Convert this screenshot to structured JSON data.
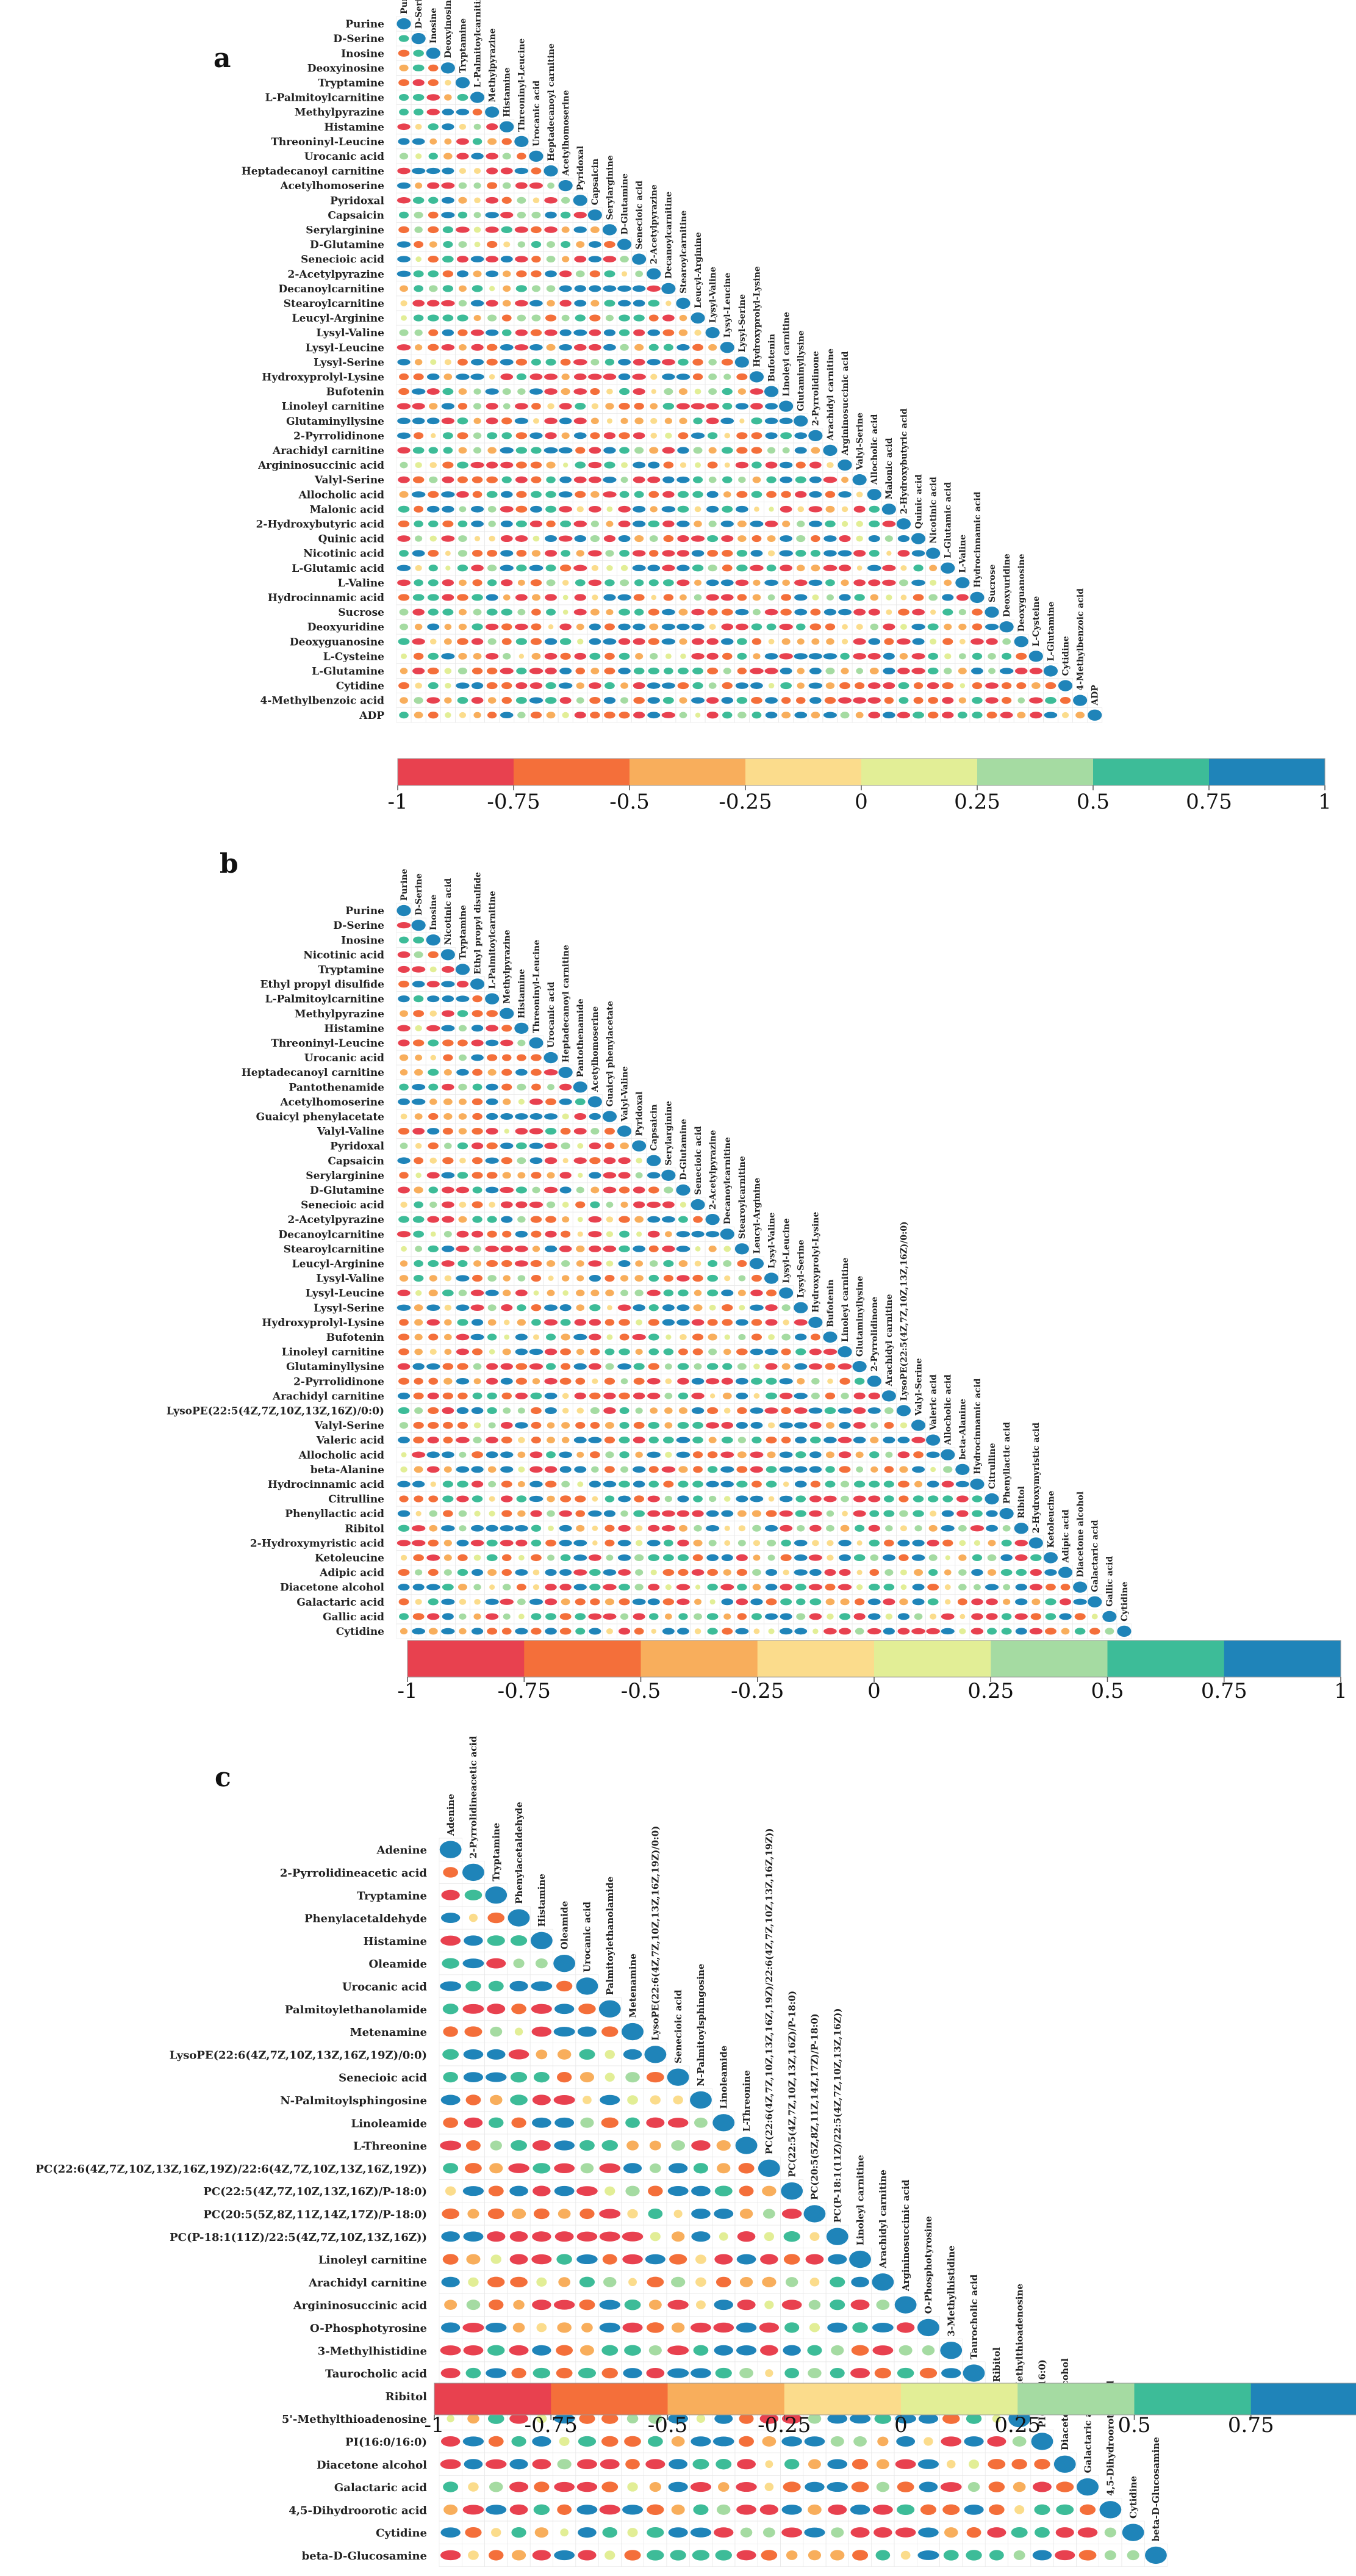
{
  "figure": {
    "panels": [
      "a",
      "b",
      "c"
    ],
    "colorbar_ticks": [
      "-1",
      "-0.75",
      "-0.5",
      "-0.25",
      "0",
      "0.25",
      "0.5",
      "0.75",
      "1"
    ],
    "colors": [
      "#e8414f",
      "#f46f3a",
      "#f8ae5c",
      "#fbdc8c",
      "#e2ee96",
      "#a5dba2",
      "#3dbc98",
      "#1f84b9"
    ],
    "point_shape": "ellipse",
    "background": "#ffffff"
  },
  "chart_data": [
    {
      "type": "heatmap",
      "panel": "a",
      "kind": "lower-triangular correlation matrix",
      "value_range": [
        -1,
        1
      ],
      "values_note": "cell values are visual estimates (color + ellipse size); labels exact",
      "labels": [
        "Purine",
        "D-Serine",
        "Inosine",
        "Deoxyinosine",
        "Tryptamine",
        "L-Palmitoylcarnitine",
        "Methylpyrazine",
        "Histamine",
        "Threoninyl-Leucine",
        "Urocanic acid",
        "Heptadecanoyl carnitine",
        "Acetylhomoserine",
        "Pyridoxal",
        "Capsaicin",
        "Serylarginine",
        "D-Glutamine",
        "Senecioic acid",
        "2-Acetylpyrazine",
        "Decanoylcarnitine",
        "Stearoylcarnitine",
        "Leucyl-Arginine",
        "Lysyl-Valine",
        "Lysyl-Leucine",
        "Lysyl-Serine",
        "Hydroxyprolyl-Lysine",
        "Bufotenin",
        "Linoleyl carnitine",
        "Glutaminyllysine",
        "2-Pyrrolidinone",
        "Arachidyl carnitine",
        "Argininosuccinic acid",
        "Valyl-Serine",
        "Allocholic acid",
        "Malonic acid",
        "2-Hydroxybutyric acid",
        "Quinic acid",
        "Nicotinic acid",
        "L-Glutamic acid",
        "L-Valine",
        "Hydrocinnamic acid",
        "Sucrose",
        "Deoxyuridine",
        "Deoxyguanosine",
        "L-Cysteine",
        "L-Glutamine",
        "Cytidine",
        "4-Methylbenzoic acid",
        "ADP"
      ]
    },
    {
      "type": "heatmap",
      "panel": "b",
      "kind": "lower-triangular correlation matrix",
      "value_range": [
        -1,
        1
      ],
      "values_note": "cell values are visual estimates (color + ellipse size); labels exact",
      "labels": [
        "Purine",
        "D-Serine",
        "Inosine",
        "Nicotinic acid",
        "Tryptamine",
        "Ethyl propyl disulfide",
        "L-Palmitoylcarnitine",
        "Methylpyrazine",
        "Histamine",
        "Threoninyl-Leucine",
        "Urocanic acid",
        "Heptadecanoyl carnitine",
        "Pantothenamide",
        "Acetylhomoserine",
        "Guaicyl phenylacetate",
        "Valyl-Valine",
        "Pyridoxal",
        "Capsaicin",
        "Serylarginine",
        "D-Glutamine",
        "Senecioic acid",
        "2-Acetylpyrazine",
        "Decanoylcarnitine",
        "Stearoylcarnitine",
        "Leucyl-Arginine",
        "Lysyl-Valine",
        "Lysyl-Leucine",
        "Lysyl-Serine",
        "Hydroxyprolyl-Lysine",
        "Bufotenin",
        "Linoleyl carnitine",
        "Glutaminyllysine",
        "2-Pyrrolidinone",
        "Arachidyl carnitine",
        "LysoPE(22:5(4Z,7Z,10Z,13Z,16Z)/0:0)",
        "Valyl-Serine",
        "Valeric acid",
        "Allocholic acid",
        "beta-Alanine",
        "Hydrocinnamic acid",
        "Citrulline",
        "Phenyllactic acid",
        "Ribitol",
        "2-Hydroxymyristic acid",
        "Ketoleucine",
        "Adipic acid",
        "Diacetone alcohol",
        "Galactaric acid",
        "Gallic acid",
        "Cytidine"
      ]
    },
    {
      "type": "heatmap",
      "panel": "c",
      "kind": "lower-triangular correlation matrix",
      "value_range": [
        -1,
        1
      ],
      "values_note": "cell values are visual estimates (color + ellipse size); labels exact",
      "labels": [
        "Adenine",
        "2-Pyrrolidineacetic acid",
        "Tryptamine",
        "Phenylacetaldehyde",
        "Histamine",
        "Oleamide",
        "Urocanic acid",
        "Palmitoylethanolamide",
        "Metenamine",
        "LysoPE(22:6(4Z,7Z,10Z,13Z,16Z,19Z)/0:0)",
        "Senecioic acid",
        "N-Palmitoylsphingosine",
        "Linoleamide",
        "L-Threonine",
        "PC(22:6(4Z,7Z,10Z,13Z,16Z,19Z)/22:6(4Z,7Z,10Z,13Z,16Z,19Z))",
        "PC(22:5(4Z,7Z,10Z,13Z,16Z)/P-18:0)",
        "PC(20:5(5Z,8Z,11Z,14Z,17Z)/P-18:0)",
        "PC(P-18:1(11Z)/22:5(4Z,7Z,10Z,13Z,16Z))",
        "Linoleyl carnitine",
        "Arachidyl carnitine",
        "Argininosuccinic acid",
        "O-Phosphotyrosine",
        "3-Methylhistidine",
        "Taurocholic acid",
        "Ribitol",
        "5'-Methylthioadenosine",
        "PI(16:0/16:0)",
        "Diacetone alcohol",
        "Galactaric acid",
        "4,5-Dihydroorotic acid",
        "Cytidine",
        "beta-D-Glucosamine"
      ]
    }
  ]
}
